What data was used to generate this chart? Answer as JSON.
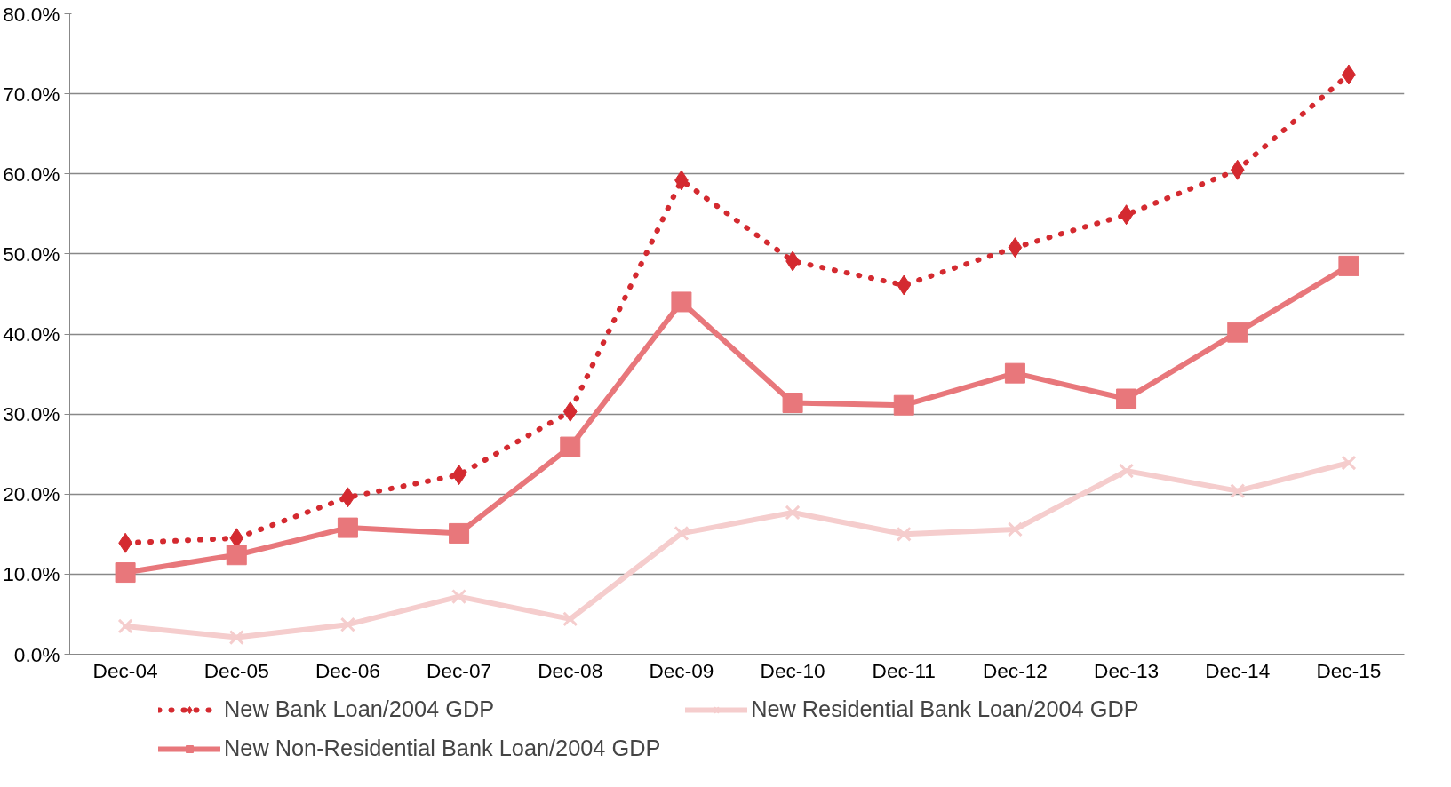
{
  "chart_data": {
    "type": "line",
    "categories": [
      "Dec-04",
      "Dec-05",
      "Dec-06",
      "Dec-07",
      "Dec-08",
      "Dec-09",
      "Dec-10",
      "Dec-11",
      "Dec-12",
      "Dec-13",
      "Dec-14",
      "Dec-15"
    ],
    "series": [
      {
        "name": "New Bank Loan/2004 GDP",
        "color": "#d42a30",
        "marker": "diamond",
        "line_style": "dotted",
        "values": [
          13.9,
          14.5,
          19.6,
          22.4,
          30.3,
          59.2,
          49.1,
          46.1,
          50.8,
          54.9,
          60.5,
          72.4
        ]
      },
      {
        "name": "New Residential Bank Loan/2004 GDP",
        "color": "#f5cdcd",
        "marker": "cross",
        "line_style": "solid",
        "values": [
          3.5,
          2.1,
          3.7,
          7.2,
          4.4,
          15.1,
          17.7,
          15.0,
          15.6,
          22.9,
          20.4,
          23.9
        ]
      },
      {
        "name": "New Non-Residential Bank Loan/2004 GDP",
        "color": "#e8777b",
        "marker": "square",
        "line_style": "solid",
        "values": [
          10.2,
          12.4,
          15.8,
          15.1,
          25.9,
          44.0,
          31.4,
          31.1,
          35.1,
          31.9,
          40.2,
          48.5
        ]
      }
    ],
    "ylim": [
      0,
      80
    ],
    "yticks": [
      {
        "value": 0,
        "label": "0.0%"
      },
      {
        "value": 10,
        "label": "10.0%"
      },
      {
        "value": 20,
        "label": "20.0%"
      },
      {
        "value": 30,
        "label": "30.0%"
      },
      {
        "value": 40,
        "label": "40.0%"
      },
      {
        "value": 50,
        "label": "50.0%"
      },
      {
        "value": 60,
        "label": "60.0%"
      },
      {
        "value": 70,
        "label": "70.0%"
      },
      {
        "value": 80,
        "label": "80.0%"
      }
    ],
    "grid": "y",
    "legend": "bottom"
  }
}
